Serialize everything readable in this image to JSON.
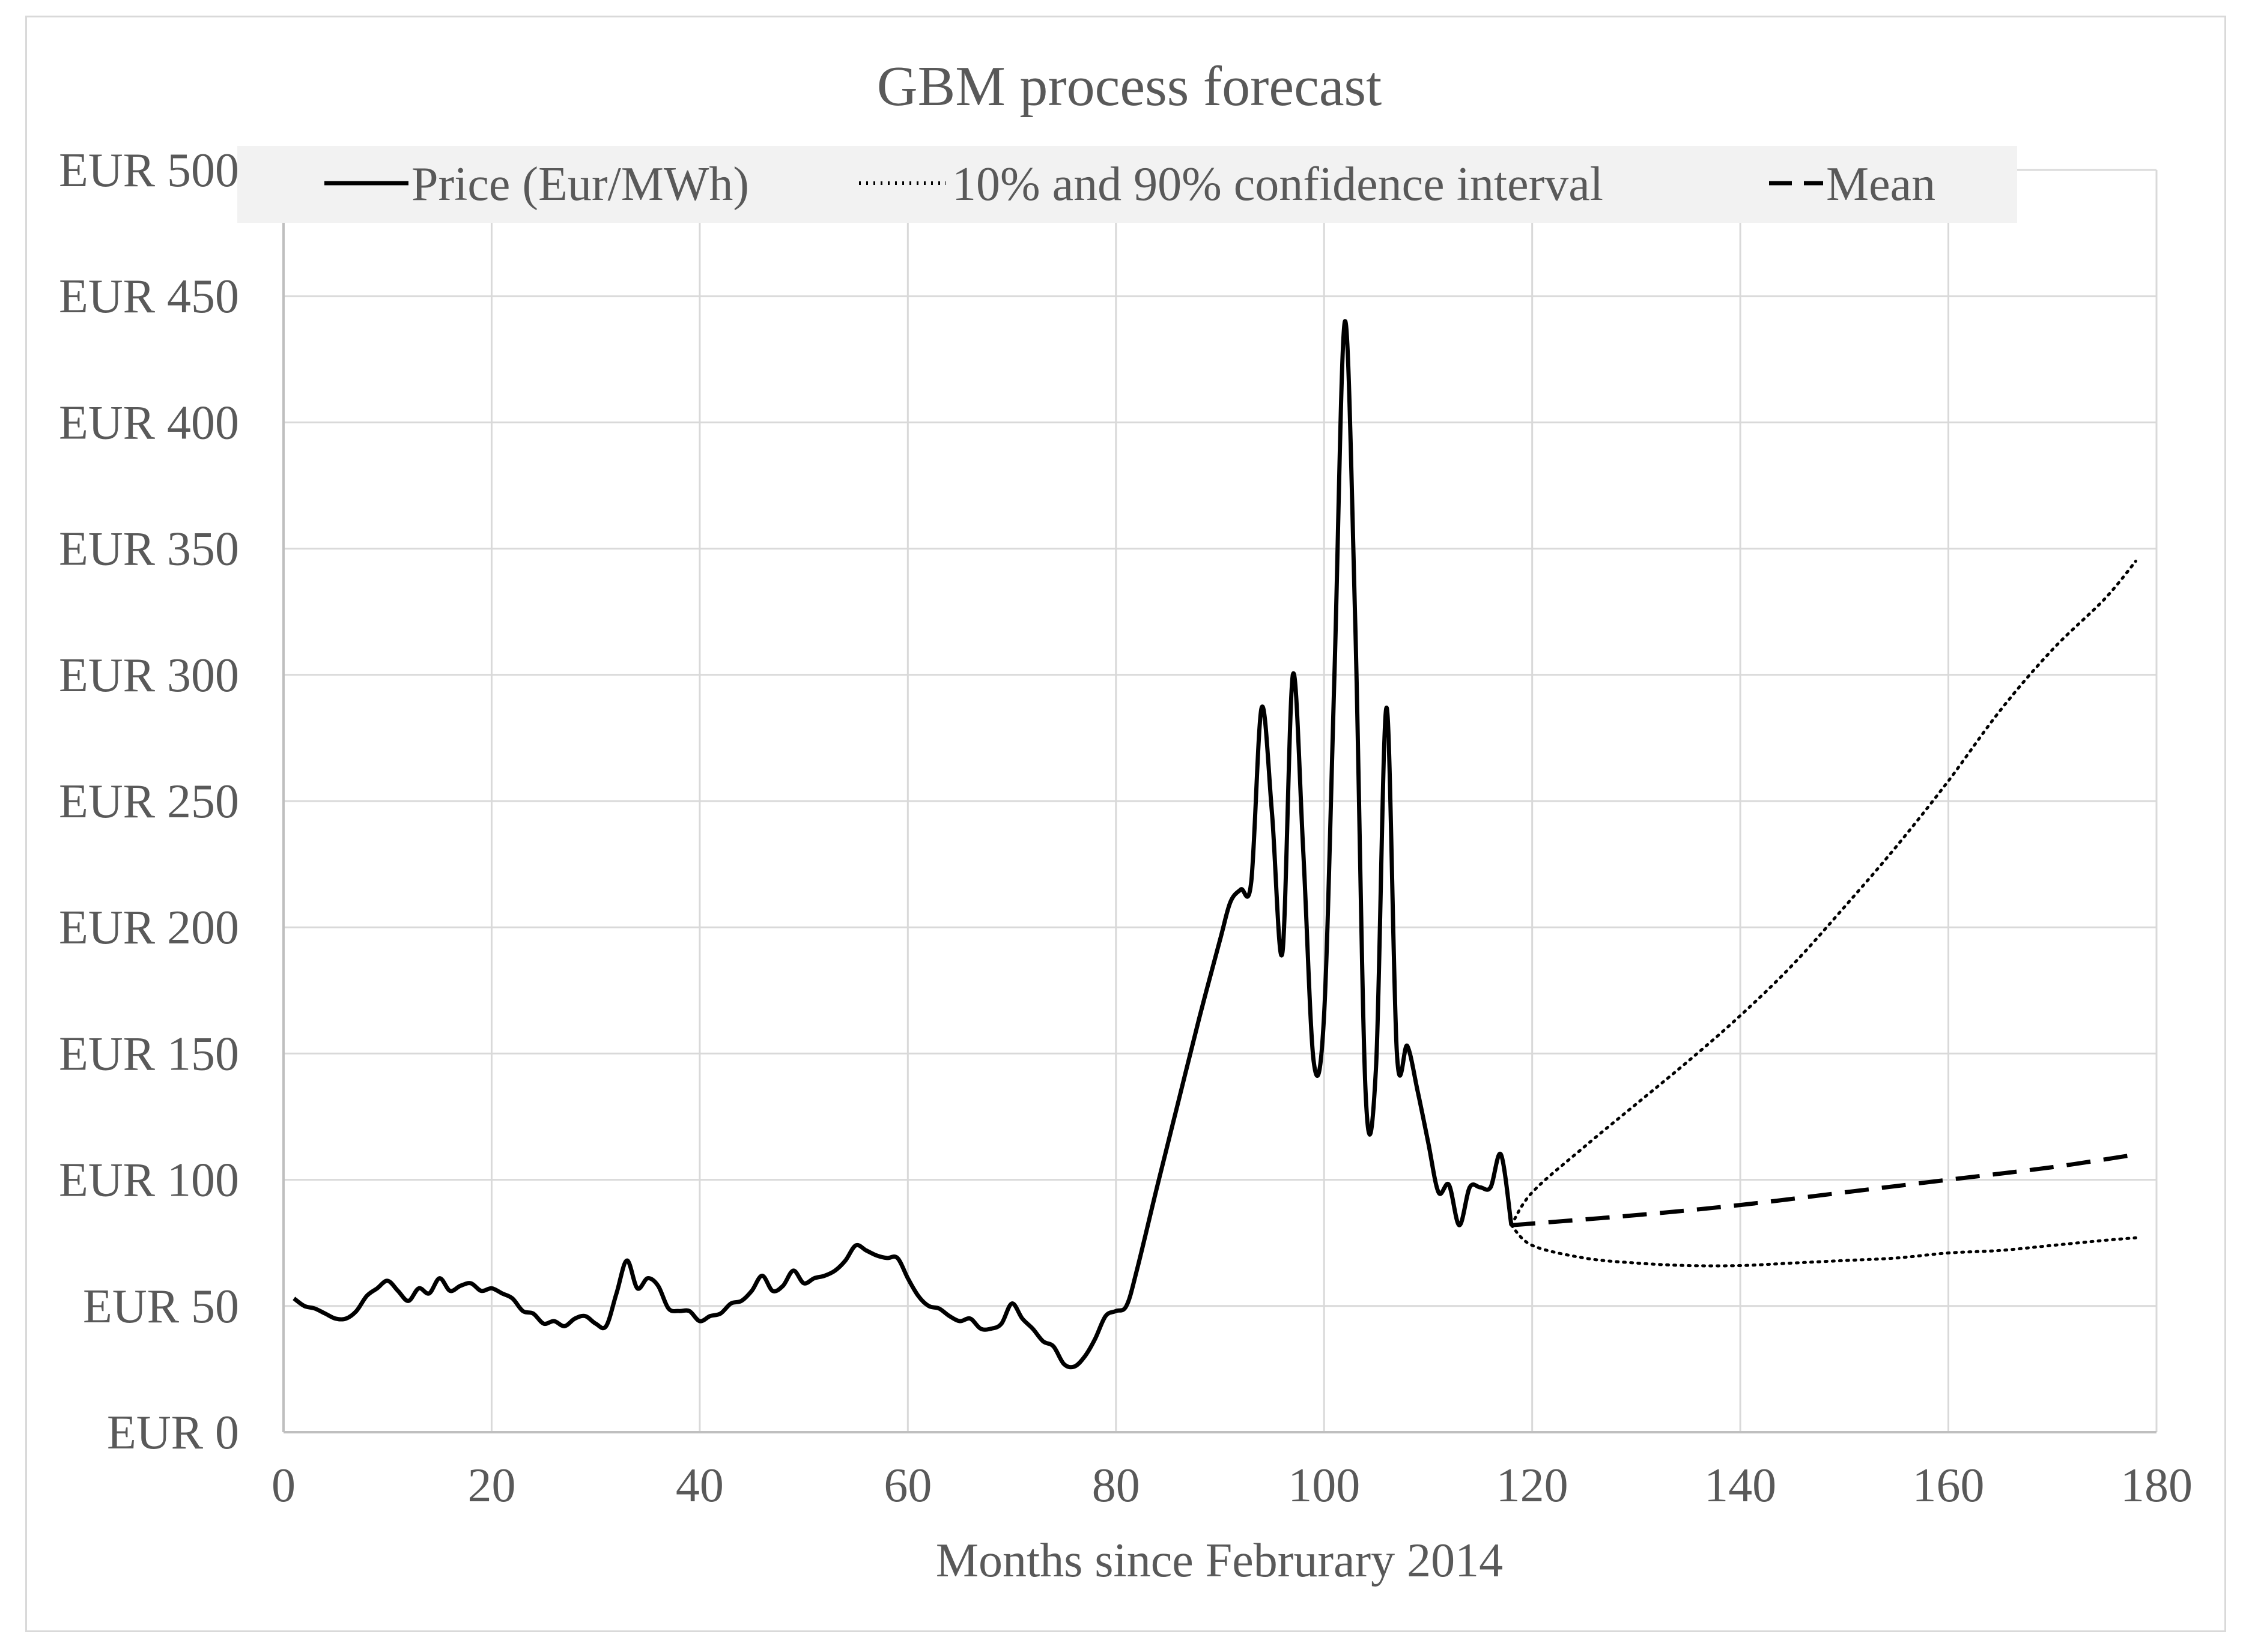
{
  "chart_data": {
    "type": "line",
    "title": "GBM process forecast",
    "xlabel": "Months since Februrary 2014",
    "ylabel": "",
    "xlim": [
      0,
      180
    ],
    "ylim": [
      0,
      500
    ],
    "x_ticks": [
      0,
      20,
      40,
      60,
      80,
      100,
      120,
      140,
      160,
      180
    ],
    "y_ticks": [
      0,
      50,
      100,
      150,
      200,
      250,
      300,
      350,
      400,
      450,
      500
    ],
    "y_tick_labels": [
      "EUR 0",
      "EUR 50",
      "EUR 100",
      "EUR 150",
      "EUR 200",
      "EUR 250",
      "EUR 300",
      "EUR 350",
      "EUR 400",
      "EUR 450",
      "EUR 500"
    ],
    "grid": true,
    "legend_position": "top",
    "series": [
      {
        "name": "Price (Eur/MWh)",
        "style": "solid",
        "color": "#000000",
        "points": [
          [
            1,
            53
          ],
          [
            2,
            50
          ],
          [
            3,
            49
          ],
          [
            4,
            47
          ],
          [
            5,
            45
          ],
          [
            6,
            45
          ],
          [
            7,
            48
          ],
          [
            8,
            54
          ],
          [
            9,
            57
          ],
          [
            10,
            60
          ],
          [
            11,
            56
          ],
          [
            12,
            52
          ],
          [
            13,
            57
          ],
          [
            14,
            55
          ],
          [
            15,
            61
          ],
          [
            16,
            56
          ],
          [
            17,
            58
          ],
          [
            18,
            59
          ],
          [
            19,
            56
          ],
          [
            20,
            57
          ],
          [
            21,
            55
          ],
          [
            22,
            53
          ],
          [
            23,
            48
          ],
          [
            24,
            47
          ],
          [
            25,
            43
          ],
          [
            26,
            44
          ],
          [
            27,
            42
          ],
          [
            28,
            45
          ],
          [
            29,
            46
          ],
          [
            30,
            43
          ],
          [
            31,
            42
          ],
          [
            32,
            55
          ],
          [
            33,
            68
          ],
          [
            34,
            57
          ],
          [
            35,
            61
          ],
          [
            36,
            58
          ],
          [
            37,
            49
          ],
          [
            38,
            48
          ],
          [
            39,
            48
          ],
          [
            40,
            44
          ],
          [
            41,
            46
          ],
          [
            42,
            47
          ],
          [
            43,
            51
          ],
          [
            44,
            52
          ],
          [
            45,
            56
          ],
          [
            46,
            62
          ],
          [
            47,
            56
          ],
          [
            48,
            58
          ],
          [
            49,
            64
          ],
          [
            50,
            59
          ],
          [
            51,
            61
          ],
          [
            52,
            62
          ],
          [
            53,
            64
          ],
          [
            54,
            68
          ],
          [
            55,
            74
          ],
          [
            56,
            72
          ],
          [
            57,
            70
          ],
          [
            58,
            69
          ],
          [
            59,
            69
          ],
          [
            60,
            61
          ],
          [
            61,
            54
          ],
          [
            62,
            50
          ],
          [
            63,
            49
          ],
          [
            64,
            46
          ],
          [
            65,
            44
          ],
          [
            66,
            45
          ],
          [
            67,
            41
          ],
          [
            68,
            41
          ],
          [
            69,
            43
          ],
          [
            70,
            51
          ],
          [
            71,
            45
          ],
          [
            72,
            41
          ],
          [
            73,
            36
          ],
          [
            74,
            34
          ],
          [
            75,
            27
          ],
          [
            76,
            26
          ],
          [
            77,
            30
          ],
          [
            78,
            37
          ],
          [
            79,
            46
          ],
          [
            80,
            48
          ],
          [
            81,
            50
          ],
          [
            82,
            64
          ],
          [
            84,
            98
          ],
          [
            86,
            131
          ],
          [
            88,
            164
          ],
          [
            90,
            195
          ],
          [
            91,
            210
          ],
          [
            92,
            215
          ],
          [
            93,
            218
          ],
          [
            94,
            287
          ],
          [
            95,
            245
          ],
          [
            96,
            190
          ],
          [
            97,
            300
          ],
          [
            98,
            230
          ],
          [
            99,
            147
          ],
          [
            100,
            165
          ],
          [
            101,
            300
          ],
          [
            102,
            440
          ],
          [
            103,
            320
          ],
          [
            104,
            134
          ],
          [
            105,
            145
          ],
          [
            106,
            287
          ],
          [
            107,
            150
          ],
          [
            108,
            153
          ],
          [
            109,
            135
          ],
          [
            110,
            115
          ],
          [
            111,
            95
          ],
          [
            112,
            98
          ],
          [
            113,
            82
          ],
          [
            114,
            97
          ],
          [
            115,
            97
          ],
          [
            116,
            97
          ],
          [
            117,
            110
          ],
          [
            118,
            82
          ]
        ]
      },
      {
        "name": "10% and 90% confidence interval",
        "style": "dotted",
        "color": "#000000",
        "upper": [
          [
            118,
            82
          ],
          [
            120,
            95
          ],
          [
            125,
            113
          ],
          [
            130,
            130
          ],
          [
            135,
            147
          ],
          [
            140,
            165
          ],
          [
            145,
            185
          ],
          [
            150,
            208
          ],
          [
            155,
            232
          ],
          [
            160,
            258
          ],
          [
            165,
            286
          ],
          [
            170,
            310
          ],
          [
            175,
            330
          ],
          [
            178,
            345
          ]
        ],
        "lower": [
          [
            118,
            82
          ],
          [
            120,
            74
          ],
          [
            125,
            69
          ],
          [
            130,
            67
          ],
          [
            135,
            66
          ],
          [
            140,
            66
          ],
          [
            145,
            67
          ],
          [
            150,
            68
          ],
          [
            155,
            69
          ],
          [
            160,
            71
          ],
          [
            165,
            72
          ],
          [
            170,
            74
          ],
          [
            175,
            76
          ],
          [
            178,
            77
          ]
        ]
      },
      {
        "name": "Mean",
        "style": "dashed",
        "color": "#000000",
        "points": [
          [
            118,
            82
          ],
          [
            130,
            86
          ],
          [
            140,
            90
          ],
          [
            150,
            95
          ],
          [
            160,
            100
          ],
          [
            170,
            105
          ],
          [
            178,
            110
          ]
        ]
      }
    ]
  }
}
